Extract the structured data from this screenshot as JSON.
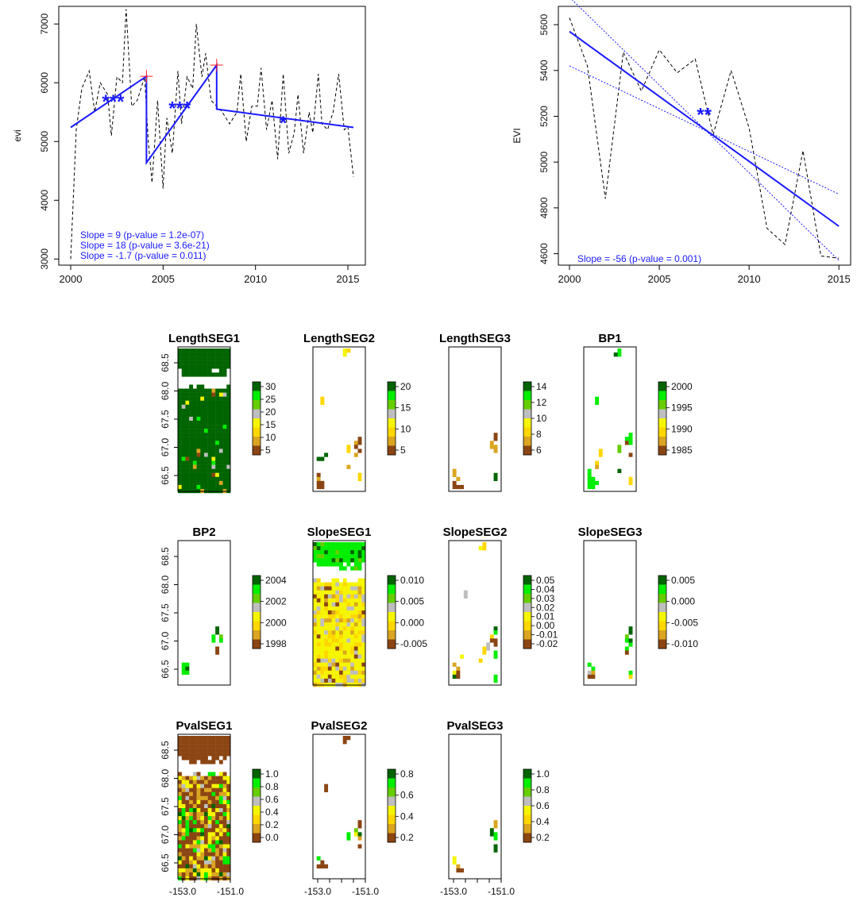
{
  "chart_data": [
    {
      "type": "line",
      "ylabel": "evi",
      "xlim": [
        2000,
        2015.3
      ],
      "ylim": [
        2950,
        7300
      ],
      "xticks": [
        2000,
        2005,
        2010,
        2015
      ],
      "yticks": [
        3000,
        4000,
        5000,
        6000,
        7000
      ],
      "series": [
        {
          "style": "dashed-black",
          "x": [
            2000,
            2000.3,
            2000.6,
            2001.0,
            2001.3,
            2001.6,
            2002.0,
            2002.2,
            2002.5,
            2002.8,
            2003.0,
            2003.3,
            2003.6,
            2004.0,
            2004.2,
            2004.4,
            2004.7,
            2005.0,
            2005.2,
            2005.5,
            2005.8,
            2006.0,
            2006.3,
            2006.6,
            2006.8,
            2007.1,
            2007.3,
            2007.6,
            2007.9,
            2008.2,
            2008.6,
            2009.0,
            2009.2,
            2009.5,
            2009.8,
            2010.1,
            2010.3,
            2010.6,
            2010.9,
            2011.2,
            2011.5,
            2011.8,
            2012.1,
            2012.3,
            2012.6,
            2012.9,
            2013.1,
            2013.4,
            2013.6,
            2013.9,
            2014.2,
            2014.5,
            2014.8,
            2015.0,
            2015.3
          ],
          "y": [
            3000,
            5200,
            5900,
            6200,
            5500,
            6000,
            5800,
            5100,
            6100,
            6000,
            7250,
            5600,
            5700,
            6100,
            5000,
            4300,
            5700,
            4200,
            5400,
            4800,
            6200,
            5300,
            6100,
            5900,
            7000,
            6100,
            6500,
            5700,
            5600,
            5500,
            5300,
            5500,
            6150,
            5000,
            5600,
            5600,
            6250,
            5200,
            5700,
            4700,
            6150,
            4800,
            5150,
            5800,
            4800,
            5500,
            5150,
            6150,
            5300,
            5200,
            5500,
            6150,
            5200,
            5250,
            4400
          ]
        },
        {
          "style": "solid-blue",
          "x": [
            2000,
            2004.1,
            2004.1,
            2007.9,
            2007.9,
            2015.3
          ],
          "y": [
            5240,
            6110,
            4640,
            6300,
            5550,
            5240
          ]
        }
      ],
      "breakpoints": [
        {
          "x": 2004.1,
          "y": 6110
        },
        {
          "x": 2007.9,
          "y": 6300
        }
      ],
      "significance": [
        {
          "x": 2002.3,
          "y": 5730,
          "label": "***"
        },
        {
          "x": 2005.9,
          "y": 5620,
          "label": "***"
        },
        {
          "x": 2011.5,
          "y": 5370,
          "label": "*"
        }
      ],
      "annotations": [
        "Slope = 9 (p-value = 1.2e-07)",
        "Slope = 18 (p-value = 3.6e-21)",
        "Slope = -1.7 (p-value = 0.011)"
      ]
    },
    {
      "type": "line",
      "ylabel": "EVI",
      "xlim": [
        2000,
        2015.3
      ],
      "ylim": [
        4550,
        5680
      ],
      "xticks": [
        2000,
        2005,
        2010,
        2015
      ],
      "yticks": [
        4600,
        4800,
        5000,
        5200,
        5400,
        5600
      ],
      "series": [
        {
          "style": "dashed-black",
          "x": [
            2000,
            2001,
            2002,
            2003,
            2004,
            2005,
            2006,
            2007,
            2008,
            2009,
            2010,
            2011,
            2012,
            2013,
            2014,
            2015
          ],
          "y": [
            5630,
            5420,
            4840,
            5480,
            5310,
            5490,
            5390,
            5450,
            5120,
            5400,
            5150,
            4710,
            4640,
            5050,
            4590,
            4580
          ]
        },
        {
          "style": "solid-blue",
          "x": [
            2000,
            2015
          ],
          "y": [
            5570,
            4720
          ]
        },
        {
          "style": "dotted-blue",
          "x": [
            2000,
            2015
          ],
          "y": [
            5420,
            4860
          ]
        },
        {
          "style": "dotted-blue",
          "x": [
            2000,
            2015
          ],
          "y": [
            5720,
            4570
          ]
        }
      ],
      "significance": [
        {
          "x": 2007.5,
          "y": 5220,
          "label": "**"
        }
      ],
      "annotations": [
        "Slope = -56 (p-value = 0.001)"
      ]
    },
    {
      "type": "heatmap",
      "panels": [
        {
          "title": "LengthSEG1",
          "legend_ticks": [
            "30",
            "25",
            "20",
            "15",
            "10",
            "5"
          ],
          "range": [
            2,
            31
          ]
        },
        {
          "title": "LengthSEG2",
          "legend_ticks": [
            "20",
            "15",
            "10",
            "5"
          ],
          "range": [
            3,
            23
          ]
        },
        {
          "title": "LengthSEG3",
          "legend_ticks": [
            "14",
            "12",
            "10",
            "8",
            "6"
          ],
          "range": [
            6,
            14
          ]
        },
        {
          "title": "BP1",
          "legend_ticks": [
            "2000",
            "1995",
            "1990",
            "1985"
          ],
          "range": [
            1985,
            2002
          ]
        },
        {
          "title": "BP2",
          "legend_ticks": [
            "2004",
            "2002",
            "2000",
            "1998"
          ],
          "range": [
            1997,
            2005
          ]
        },
        {
          "title": "SlopeSEG1",
          "legend_ticks": [
            "0.010",
            "0.005",
            "0.000",
            "-0.005"
          ],
          "range": [
            -0.008,
            0.012
          ]
        },
        {
          "title": "SlopeSEG2",
          "legend_ticks": [
            "0.05",
            "0.04",
            "0.03",
            "0.02",
            "0.01",
            "0.00",
            "-0.01",
            "-0.02"
          ],
          "range": [
            -0.025,
            0.055
          ]
        },
        {
          "title": "SlopeSEG3",
          "legend_ticks": [
            "0.005",
            "0.000",
            "-0.005",
            "-0.010"
          ],
          "range": [
            -0.013,
            0.008
          ]
        },
        {
          "title": "PvalSEG1",
          "legend_ticks": [
            "1.0",
            "0.8",
            "0.6",
            "0.4",
            "0.2",
            "0.0"
          ],
          "range": [
            0,
            1
          ]
        },
        {
          "title": "PvalSEG2",
          "legend_ticks": [
            "0.8",
            "0.6",
            "0.4",
            "0.2"
          ],
          "range": [
            0.05,
            0.85
          ]
        },
        {
          "title": "PvalSEG3",
          "legend_ticks": [
            "1.0",
            "0.8",
            "0.6",
            "0.4",
            "0.2"
          ],
          "range": [
            0.05,
            1.05
          ]
        }
      ],
      "yticks": [
        "68.5",
        "68.0",
        "67.5",
        "67.0",
        "66.5"
      ],
      "xticks": [
        "-153.0",
        "-151.0"
      ],
      "colors": [
        "#8b4513",
        "#daa520",
        "#ffd700",
        "#f5f500",
        "#bebebe",
        "#66cd00",
        "#00ee00",
        "#006400"
      ]
    }
  ]
}
